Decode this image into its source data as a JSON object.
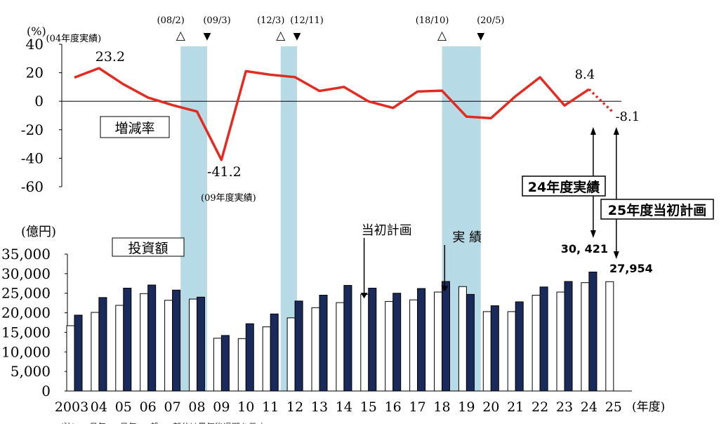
{
  "chart_data": [
    {
      "type": "line",
      "unit": "(%)",
      "label_box": "増減率",
      "ylim": [
        -60,
        40
      ],
      "y_ticks": [
        "40",
        "20",
        "0",
        "-20",
        "-40",
        "-60"
      ],
      "x": [
        "2003",
        "04",
        "05",
        "06",
        "07",
        "08",
        "09",
        "10",
        "11",
        "12",
        "13",
        "14",
        "15",
        "16",
        "17",
        "18",
        "19",
        "20",
        "21",
        "22",
        "23",
        "24",
        "25"
      ],
      "values": [
        16.6,
        23.2,
        11.9,
        2.6,
        -2.7,
        -7.2,
        -41.2,
        21.1,
        18.6,
        16.9,
        7.2,
        10.0,
        -0.1,
        -4.7,
        6.8,
        7.4,
        -10.8,
        -11.9,
        3.5,
        16.8,
        -3.0,
        8.4,
        -8.1
      ],
      "series": [
        {
          "values_range": "2003-24",
          "style": "solid",
          "color": "#e32b22"
        },
        {
          "values_range": "24-25",
          "style": "dotted",
          "color": "#e32b22"
        }
      ],
      "annotations": {
        "max_value": "23.2",
        "max_label": "(04年度実績)",
        "min_value": "-41.2",
        "min_label": "(09年度実績)",
        "last_actual_value": "8.4",
        "plan_value": "-8.1"
      },
      "recession_markers": [
        {
          "peak": "(08/2)",
          "trough": "(09/3)"
        },
        {
          "peak": "(12/3)",
          "trough": "(12/11)"
        },
        {
          "peak": "(18/10)",
          "trough": "(20/5)"
        }
      ],
      "marker_symbols": {
        "peak": "△",
        "trough": "▼"
      },
      "shade_color": "#b7dbe6"
    },
    {
      "type": "bar",
      "unit": "(億円)",
      "label_box": "投資額",
      "ylim": [
        0,
        35000
      ],
      "y_ticks": [
        "35,000",
        "30,000",
        "25,000",
        "20,000",
        "15,000",
        "10,000",
        "5,000",
        "0"
      ],
      "categories": [
        "2003",
        "04",
        "05",
        "06",
        "07",
        "08",
        "09",
        "10",
        "11",
        "12",
        "13",
        "14",
        "15",
        "16",
        "17",
        "18",
        "19",
        "20",
        "21",
        "22",
        "23",
        "24",
        "25"
      ],
      "series": [
        {
          "name": "当初計画",
          "color": "#ffffff",
          "values": [
            16700,
            20100,
            21900,
            24900,
            23200,
            23500,
            13500,
            13400,
            16400,
            18700,
            21300,
            22600,
            24700,
            22900,
            23300,
            25300,
            26700,
            20300,
            20300,
            24500,
            25300,
            27700,
            27954
          ]
        },
        {
          "name": "実 績",
          "color": "#1a2a5a",
          "values": [
            19400,
            23900,
            26300,
            27100,
            25800,
            24000,
            14200,
            17200,
            19700,
            23000,
            24500,
            27000,
            26300,
            25000,
            26200,
            28000,
            24700,
            21800,
            22800,
            26600,
            28000,
            30421,
            null
          ]
        }
      ],
      "x_unit": "(年度)",
      "bar_labels": {
        "actual_24": "30, 421",
        "plan_25": "27,954"
      }
    }
  ],
  "callouts": {
    "actual_24": "24年度実績",
    "plan_25": "25年度当初計画"
  },
  "footnote": "(注) … 月年 … 月年 … 般 … 部分は景気後退期を示す"
}
